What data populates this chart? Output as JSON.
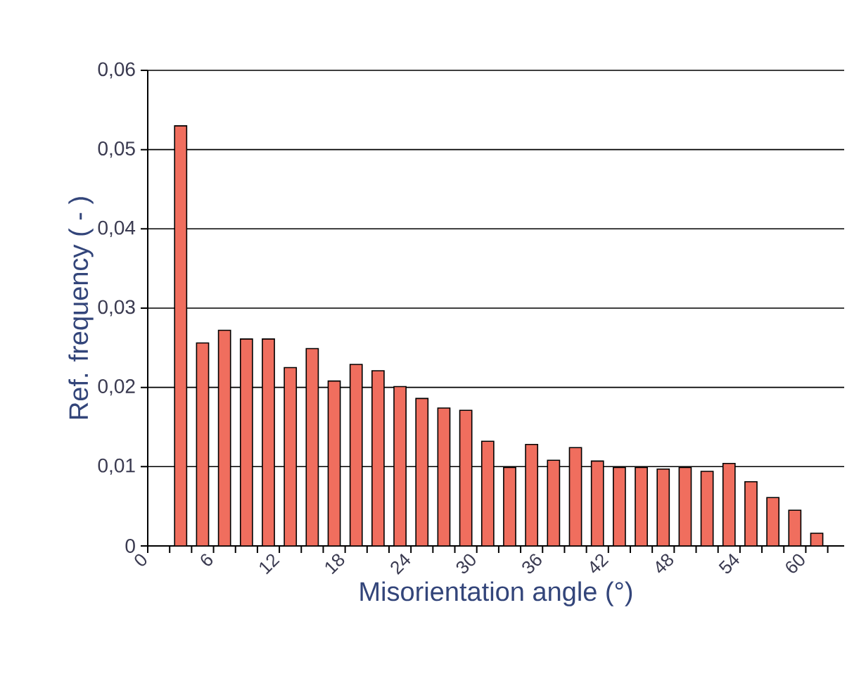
{
  "chart_data": {
    "type": "histogram",
    "xlabel": "Misorientation angle  (°)",
    "ylabel": "Ref. frequency  ( - )",
    "color": "#f06e5e",
    "bins": [
      2,
      4,
      6,
      8,
      10,
      12,
      14,
      16,
      18,
      20,
      22,
      24,
      26,
      28,
      30,
      32,
      34,
      36,
      38,
      40,
      42,
      44,
      46,
      48,
      50,
      52,
      54,
      56,
      58,
      60,
      62
    ],
    "values": [
      0.053,
      0.0256,
      0.0272,
      0.0261,
      0.0261,
      0.0225,
      0.0249,
      0.0208,
      0.0229,
      0.0221,
      0.0201,
      0.0186,
      0.0174,
      0.0171,
      0.0132,
      0.0099,
      0.0128,
      0.0108,
      0.0124,
      0.0107,
      0.0099,
      0.0099,
      0.0097,
      0.0099,
      0.0094,
      0.0104,
      0.0081,
      0.0061,
      0.0045,
      0.0016
    ],
    "xlim": [
      0,
      63.5
    ],
    "xticks": [
      {
        "value": 0,
        "label": "0"
      },
      {
        "value": 2,
        "label": null
      },
      {
        "value": 4,
        "label": null
      },
      {
        "value": 6,
        "label": "6"
      },
      {
        "value": 8,
        "label": null
      },
      {
        "value": 10,
        "label": null
      },
      {
        "value": 12,
        "label": "12"
      },
      {
        "value": 14,
        "label": null
      },
      {
        "value": 16,
        "label": null
      },
      {
        "value": 18,
        "label": "18"
      },
      {
        "value": 20,
        "label": null
      },
      {
        "value": 22,
        "label": null
      },
      {
        "value": 24,
        "label": "24"
      },
      {
        "value": 26,
        "label": null
      },
      {
        "value": 28,
        "label": null
      },
      {
        "value": 30,
        "label": "30"
      },
      {
        "value": 32,
        "label": null
      },
      {
        "value": 34,
        "label": null
      },
      {
        "value": 36,
        "label": "36"
      },
      {
        "value": 38,
        "label": null
      },
      {
        "value": 40,
        "label": null
      },
      {
        "value": 42,
        "label": "42"
      },
      {
        "value": 44,
        "label": null
      },
      {
        "value": 46,
        "label": null
      },
      {
        "value": 48,
        "label": "48"
      },
      {
        "value": 50,
        "label": null
      },
      {
        "value": 52,
        "label": null
      },
      {
        "value": 54,
        "label": "54"
      },
      {
        "value": 56,
        "label": null
      },
      {
        "value": 58,
        "label": null
      },
      {
        "value": 60,
        "label": "60"
      },
      {
        "value": 62,
        "label": null
      }
    ],
    "ylim": [
      0,
      0.06
    ],
    "yticks": [
      {
        "value": 0,
        "label": "0"
      },
      {
        "value": 0.01,
        "label": "0,01"
      },
      {
        "value": 0.02,
        "label": "0,02"
      },
      {
        "value": 0.03,
        "label": "0,03"
      },
      {
        "value": 0.04,
        "label": "0,04"
      },
      {
        "value": 0.05,
        "label": "0,05"
      },
      {
        "value": 0.06,
        "label": "0,06"
      }
    ],
    "grid": "y"
  }
}
